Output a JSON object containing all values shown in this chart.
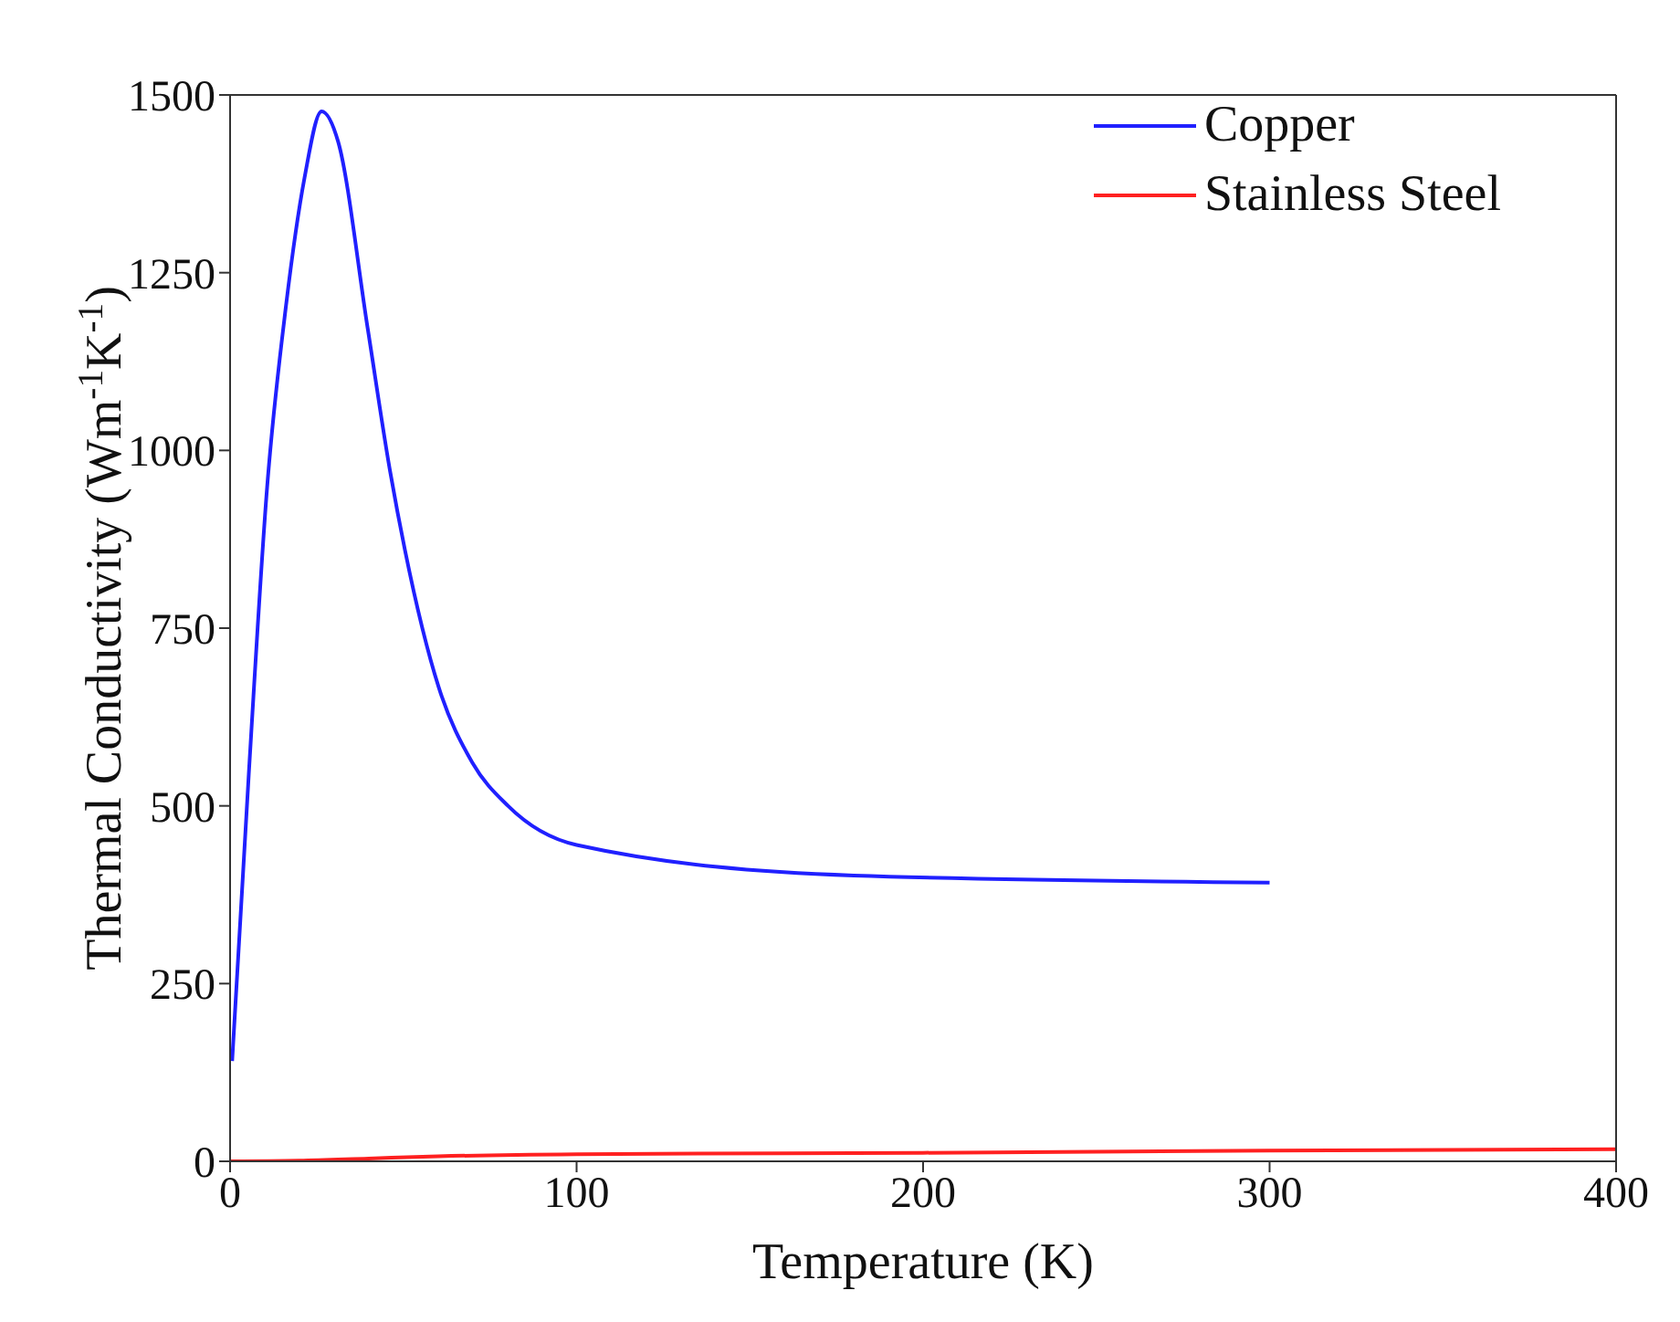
{
  "chart_data": {
    "type": "line",
    "xlabel": "Temperature (K)",
    "ylabel": "Thermal Conductivity (Wm$^{-1}$K$^{-1}$)",
    "xlim": [
      0,
      400
    ],
    "xticks": [
      0,
      100,
      200,
      300,
      400
    ],
    "ylim": [
      0,
      1500
    ],
    "yticks": [
      0,
      250,
      500,
      750,
      1000,
      1250,
      1500
    ],
    "legend": "top right",
    "line_style": "solid",
    "marker": "none",
    "series": [
      {
        "name": "Copper",
        "color": "#2020ff",
        "x": [
          0.6,
          5.4,
          10.7,
          16.1,
          21.5,
          26.4,
          31.2,
          39.7,
          46.2,
          50.5,
          60.2,
          69.9,
          80.2,
          100,
          180,
          300
        ],
        "values": [
          141,
          545,
          949,
          1202,
          1384,
          1477,
          1434,
          1172,
          970,
          859,
          667,
          561,
          500,
          445,
          402,
          392
        ]
      },
      {
        "name": "Stainless Steel",
        "color": "#ff2020",
        "x": [
          0,
          20,
          40,
          60,
          100,
          200,
          300,
          400
        ],
        "values": [
          0,
          1,
          4,
          7,
          10,
          12,
          15,
          17
        ]
      }
    ]
  }
}
